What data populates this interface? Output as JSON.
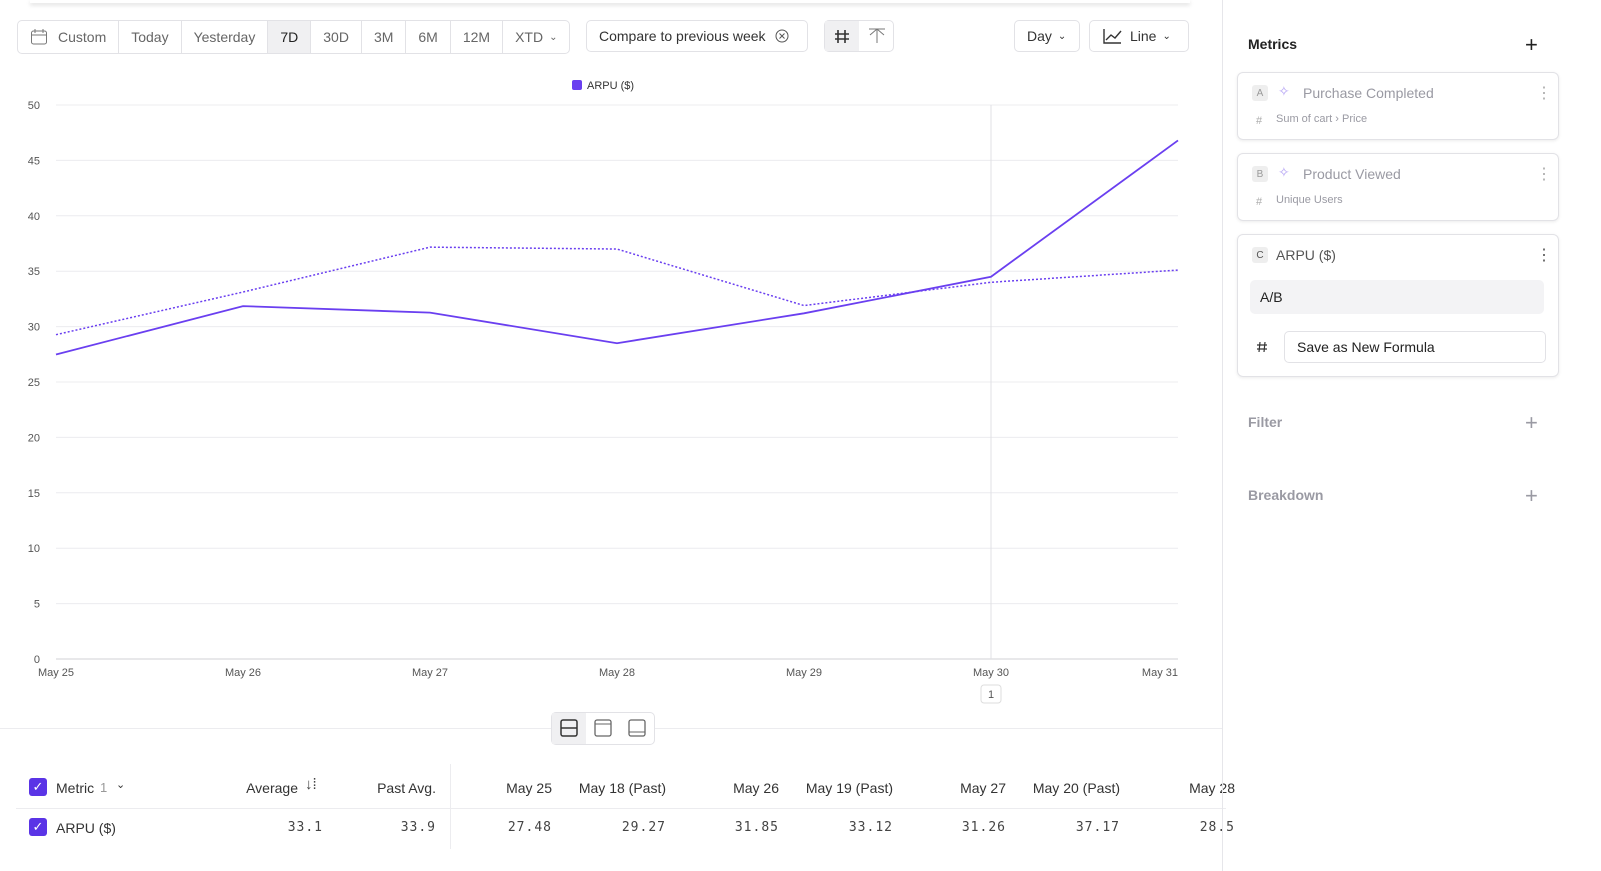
{
  "toolbar": {
    "ranges": [
      "Custom",
      "Today",
      "Yesterday",
      "7D",
      "30D",
      "3M",
      "6M",
      "12M",
      "XTD"
    ],
    "active": "7D",
    "compare": "Compare to previous week",
    "interval": "Day",
    "chart_kind": "Line"
  },
  "chart_data": {
    "type": "line",
    "categories": [
      "May 25",
      "May 26",
      "May 27",
      "May 28",
      "May 29",
      "May 30",
      "May 31"
    ],
    "series": [
      {
        "name": "ARPU ($)",
        "color": "#6a3ff0",
        "style": "solid",
        "values": [
          27.48,
          31.85,
          31.26,
          28.5,
          31.2,
          34.5,
          46.8
        ]
      },
      {
        "color": "#6a3ff0",
        "style": "dotted",
        "values": [
          29.27,
          33.12,
          37.17,
          37.0,
          31.9,
          34.0,
          35.1
        ]
      }
    ],
    "ylim": [
      0,
      50
    ],
    "yticks": [
      0,
      5,
      10,
      15,
      20,
      25,
      30,
      35,
      40,
      45,
      50
    ],
    "grid": true,
    "legend": "top",
    "annotation": {
      "x": "May 30",
      "label": "1"
    }
  },
  "table": {
    "metric_header": "Metric",
    "metric_count": "1",
    "columns": [
      "Average",
      "Past Avg.",
      "May 25",
      "May 18 (Past)",
      "May 26",
      "May 19 (Past)",
      "May 27",
      "May 20 (Past)",
      "May 28"
    ],
    "rows": [
      {
        "name": "ARPU ($)",
        "cells": [
          "33.1",
          "33.9",
          "27.48",
          "29.27",
          "31.85",
          "33.12",
          "31.26",
          "37.17",
          "28.5"
        ]
      }
    ]
  },
  "sidebar": {
    "metrics_title": "Metrics",
    "metrics": [
      {
        "letter": "A",
        "name": "Purchase Completed",
        "detail": "Sum of cart › Price"
      },
      {
        "letter": "B",
        "name": "Product Viewed",
        "detail": "Unique Users"
      }
    ],
    "formula": {
      "letter": "C",
      "name": "ARPU ($)",
      "expression": "A/B",
      "action": "Save as New Formula"
    },
    "filter": "Filter",
    "breakdown": "Breakdown"
  }
}
